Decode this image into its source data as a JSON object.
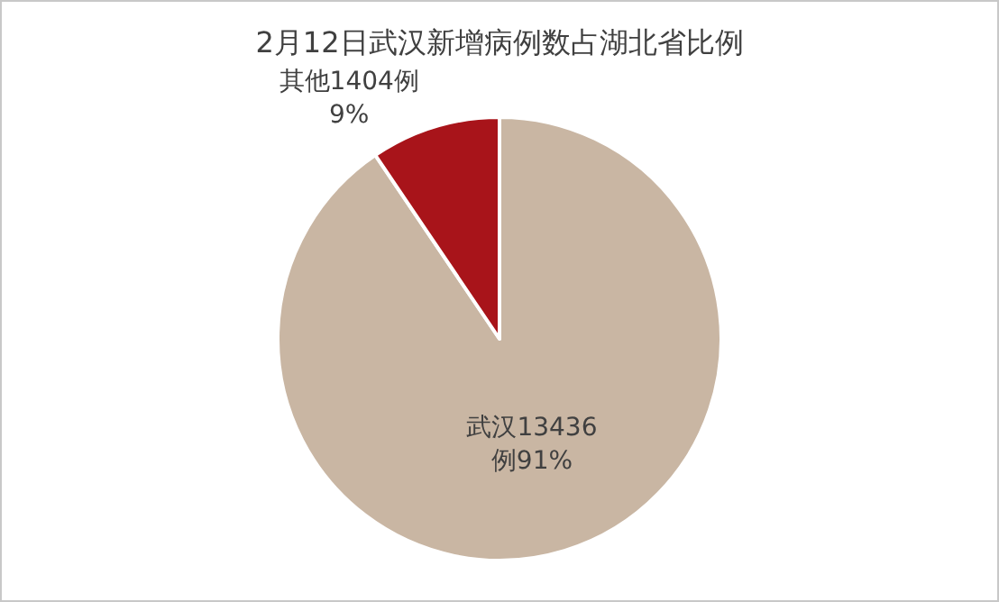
{
  "chart_data": {
    "type": "pie",
    "title": "2月12日武汉新增病例数占湖北省比例",
    "categories": [
      "武汉",
      "其他"
    ],
    "values": [
      13436,
      1404
    ],
    "value_labels": [
      "13436\n例91%",
      "1404例\n9%"
    ],
    "colors": [
      "#c9b6a3",
      "#a8141a"
    ],
    "legend": false
  }
}
